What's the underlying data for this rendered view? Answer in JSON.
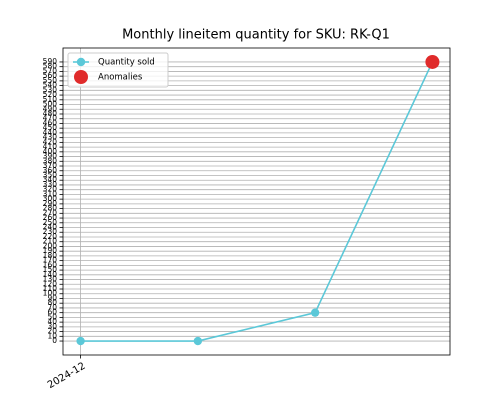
{
  "chart_data": {
    "type": "line",
    "title": "Monthly lineitem quantity for SKU: RK-Q1",
    "categories": [
      "2024-12",
      null,
      null,
      null
    ],
    "series": [
      {
        "name": "Quantity sold",
        "color": "#5bc8d8",
        "values": [
          0,
          0,
          60,
          590
        ]
      },
      {
        "name": "Anomalies",
        "color": "#e02b2b",
        "values": [
          null,
          null,
          null,
          590
        ]
      }
    ],
    "ylim": [
      -29.5,
      619.5
    ],
    "yticks": [
      0,
      10,
      20,
      30,
      40,
      50,
      60,
      70,
      80,
      90,
      100,
      110,
      120,
      130,
      140,
      150,
      160,
      170,
      180,
      190,
      200,
      210,
      220,
      230,
      240,
      250,
      260,
      270,
      280,
      290,
      300,
      310,
      320,
      330,
      340,
      350,
      360,
      370,
      380,
      390,
      400,
      410,
      420,
      430,
      440,
      450,
      460,
      470,
      480,
      490,
      500,
      510,
      520,
      530,
      540,
      550,
      560,
      570,
      580,
      590
    ],
    "grid": true,
    "legend": "upper left"
  }
}
